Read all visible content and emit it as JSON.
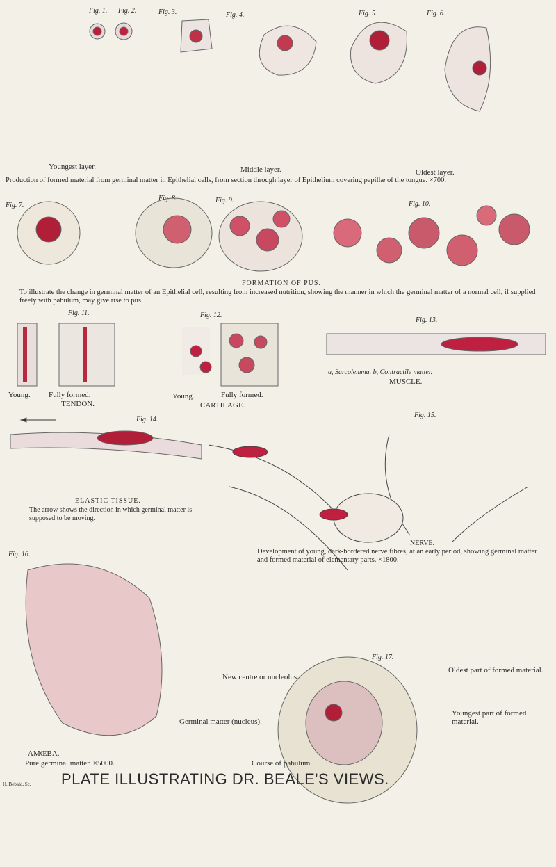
{
  "figure_labels": [
    "Fig. 1.",
    "Fig. 2.",
    "Fig. 3.",
    "Fig. 4.",
    "Fig. 5.",
    "Fig. 6.",
    "Fig. 7.",
    "Fig. 8.",
    "Fig. 9.",
    "Fig. 10.",
    "Fig. 11.",
    "Fig. 12.",
    "Fig. 13.",
    "Fig. 14.",
    "Fig. 15.",
    "Fig. 16.",
    "Fig. 17."
  ],
  "epithelium": {
    "youngest": "Youngest layer.",
    "middle": "Middle layer.",
    "oldest": "Oldest layer.",
    "caption": "Production of formed material from germinal matter in Epithelial cells, from section through layer of Epithelium covering papillæ of the tongue. ×700."
  },
  "pus": {
    "title": "FORMATION OF PUS.",
    "caption": "To illustrate the change in germinal matter of an Epithelial cell, resulting from increased nutrition, showing the manner in which the germinal matter of a normal cell, if supplied freely with pabulum, may give rise to pus."
  },
  "tendon": {
    "young": "Young.",
    "fully_formed": "Fully formed.",
    "title": "TENDON."
  },
  "cartilage": {
    "young": "Young.",
    "fully_formed": "Fully formed.",
    "title": "CARTILAGE."
  },
  "muscle": {
    "caption": "a, Sarcolemma.  b, Contractile matter.",
    "title": "MUSCLE."
  },
  "elastic": {
    "title": "ELASTIC TISSUE.",
    "caption": "The arrow shows the direction in which germinal matter is supposed to be moving."
  },
  "nerve": {
    "title": "NERVE.",
    "caption": "Development of young, dark-bordered nerve fibres, at an early period, showing germinal matter and formed material of elementary parts. ×1800."
  },
  "amoeba": {
    "title": "AMŒBA.",
    "caption": "Pure germinal matter. ×5000."
  },
  "fig17": {
    "nucleolus": "New centre or nucleolus.",
    "nucleus": "Germinal matter (nucleus).",
    "pabulum": "Course of pabulum.",
    "oldest": "Oldest part of formed material.",
    "youngest": "Youngest part of formed material."
  },
  "footer": {
    "title": "PLATE ILLUSTRATING DR. BEALE'S VIEWS.",
    "engraver": "H. Bebald, Sc."
  }
}
